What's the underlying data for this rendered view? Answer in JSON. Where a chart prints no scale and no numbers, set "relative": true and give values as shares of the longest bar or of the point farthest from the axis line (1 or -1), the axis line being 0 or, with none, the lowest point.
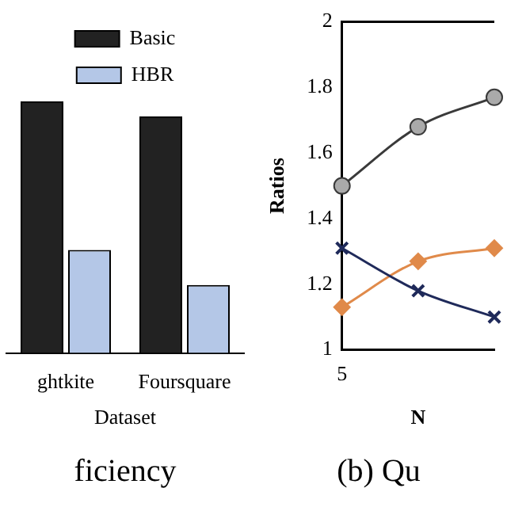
{
  "chart_data": [
    {
      "type": "bar",
      "title": "ficiency",
      "xlabel": "Dataset",
      "categories": [
        "ghtkite",
        "Foursquare"
      ],
      "relative": true,
      "legend": "top",
      "grid": false,
      "series": [
        {
          "name": "Basic",
          "color": "#222222",
          "values": [
            1,
            0.94
          ]
        },
        {
          "name": "HBR",
          "color": "#b4c7e7",
          "values": [
            0.41,
            0.27
          ]
        }
      ]
    },
    {
      "type": "line",
      "title": "(b) Qu",
      "xlabel": "N",
      "ylabel": "Ratios",
      "categories": [
        "5",
        null,
        null
      ],
      "ylim": [
        1,
        2
      ],
      "yticks": [
        1,
        1.2,
        1.4,
        1.6,
        1.8,
        2
      ],
      "grid": false,
      "legend": false,
      "series": [
        {
          "color": "#3a3a3a",
          "marker": "circle",
          "values": [
            1.5,
            1.68,
            1.77
          ]
        },
        {
          "color": "#1f2a5a",
          "marker": "cross",
          "values": [
            1.31,
            1.18,
            1.1
          ]
        },
        {
          "color": "#e08a4a",
          "marker": "diamond",
          "values": [
            1.13,
            1.27,
            1.31
          ]
        }
      ]
    }
  ]
}
